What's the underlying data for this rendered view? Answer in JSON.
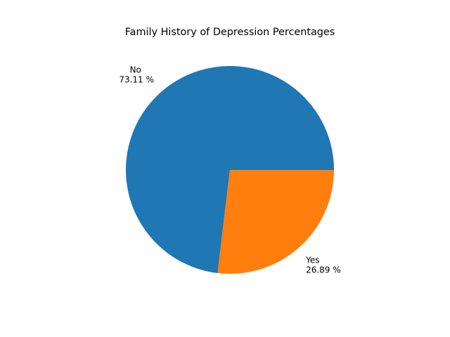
{
  "chart_data": {
    "type": "pie",
    "title": "Family History of Depression Percentages",
    "slices": [
      {
        "label": "No",
        "value": 73.11,
        "pct_text": "73.11 %",
        "color": "#1f77b4"
      },
      {
        "label": "Yes",
        "value": 26.89,
        "pct_text": "26.89 %",
        "color": "#ff7f0e"
      }
    ],
    "start_angle_deg": 0,
    "direction": "counterclockwise",
    "background": "#ffffff"
  }
}
